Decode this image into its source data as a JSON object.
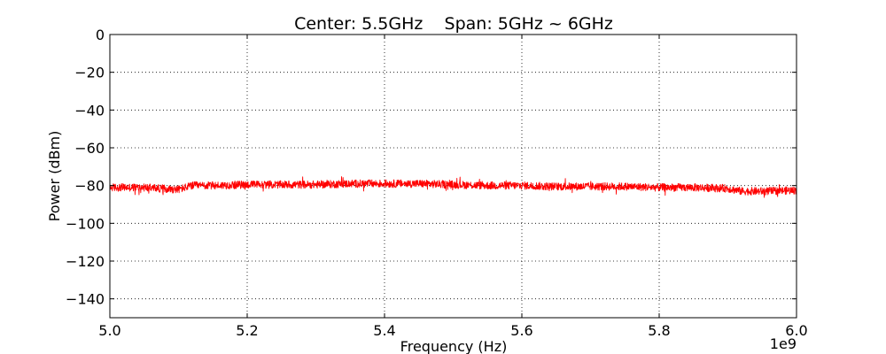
{
  "chart_data": {
    "type": "line",
    "title": "Center: 5.5GHz    Span: 5GHz ~ 6GHz",
    "xlabel": "Frequency (Hz)",
    "ylabel": "Power (dBm)",
    "x_offset_label": "1e9",
    "xlim": [
      5.0,
      6.0
    ],
    "ylim": [
      -150,
      0
    ],
    "x_ticks": [
      5.0,
      5.2,
      5.4,
      5.6,
      5.8,
      6.0
    ],
    "x_tick_labels": [
      "5.0",
      "5.2",
      "5.4",
      "5.6",
      "5.8",
      "6.0"
    ],
    "y_ticks": [
      0,
      -20,
      -40,
      -60,
      -80,
      -100,
      -120,
      -140
    ],
    "y_tick_labels": [
      "0",
      "−20",
      "−40",
      "−60",
      "−80",
      "−100",
      "−120",
      "−140"
    ],
    "grid": true,
    "legend": "none",
    "series": [
      {
        "color": "#ff0000",
        "x": [
          5.0,
          5.05,
          5.1,
          5.12,
          5.15,
          5.2,
          5.25,
          5.3,
          5.35,
          5.4,
          5.45,
          5.5,
          5.55,
          5.6,
          5.65,
          5.7,
          5.75,
          5.8,
          5.85,
          5.9,
          5.92,
          5.95,
          6.0
        ],
        "values": [
          -81,
          -81,
          -82,
          -80,
          -80,
          -79.5,
          -79.5,
          -79.5,
          -79,
          -79,
          -79,
          -79.5,
          -80,
          -80,
          -80.5,
          -80.5,
          -80.5,
          -81,
          -81,
          -81.5,
          -83,
          -83,
          -82.5
        ]
      }
    ]
  }
}
